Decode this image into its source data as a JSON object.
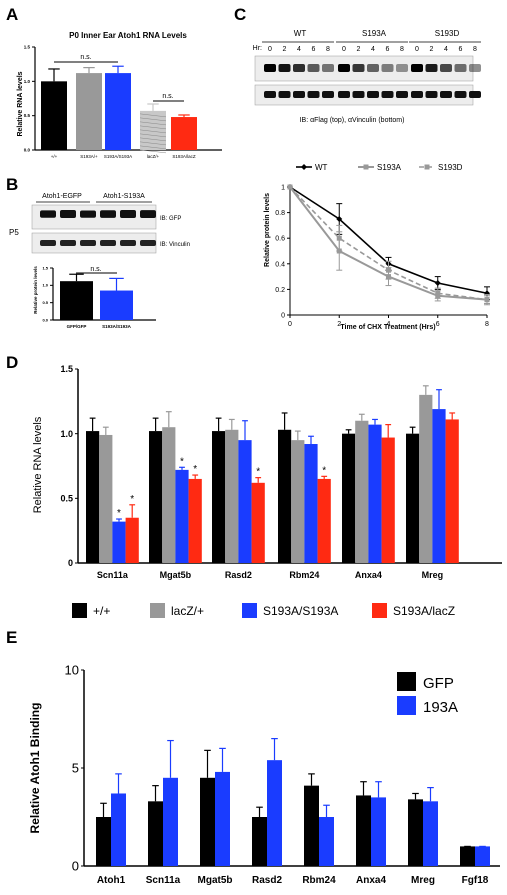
{
  "panels": {
    "A": "A",
    "B": "B",
    "C": "C",
    "D": "D",
    "E": "E"
  },
  "colors": {
    "black": "#000000",
    "gray": "#999999",
    "blue": "#1a3cff",
    "red": "#ff2a12",
    "light": "#c8c8c8",
    "salmon": "#ff6655"
  },
  "chart_data": [
    {
      "id": "A",
      "type": "bar",
      "title": "P0 Inner Ear Atoh1 RNA Levels",
      "ylabel": "Relative RNA levels",
      "xlabel": "",
      "ylim": [
        0,
        1.5
      ],
      "yticks": [
        "0.0",
        "0.5",
        "1.0",
        "1.5"
      ],
      "categories": [
        "+/+",
        "S193A/+",
        "S193A/S193A",
        "lacZ/+",
        "S193A/lacZ"
      ],
      "values": [
        1.0,
        1.12,
        1.12,
        0.57,
        0.48
      ],
      "errors": [
        0.18,
        0.08,
        0.1,
        0.1,
        0.03
      ],
      "annotations": [
        "n.s.",
        "n.s."
      ]
    },
    {
      "id": "B",
      "type": "bar",
      "ylabel": "Relative protein levels",
      "ylim": [
        0,
        1.5
      ],
      "categories": [
        "GFP/GFP",
        "S193A/S193A"
      ],
      "values": [
        1.12,
        0.85
      ],
      "errors": [
        0.2,
        0.35
      ],
      "annotations": [
        "n.s."
      ],
      "blot": {
        "groups": [
          "Atoh1-EGFP",
          "Atoh1-S193A"
        ],
        "row_label": "P5",
        "rows": [
          "IB: GFP",
          "IB: Vinculin"
        ]
      }
    },
    {
      "id": "C",
      "type": "line",
      "xlabel": "Time of CHX Treatment (Hrs)",
      "ylabel": "Relative protein levels",
      "xlim": [
        0,
        8
      ],
      "ylim": [
        0,
        1.0
      ],
      "xticks": [
        "0",
        "2",
        "4",
        "6",
        "8"
      ],
      "yticks": [
        "0",
        "0.2",
        "0.4",
        "0.6",
        "0.8",
        "1"
      ],
      "x": [
        0,
        2,
        4,
        6,
        8
      ],
      "series": [
        {
          "name": "WT",
          "values": [
            1.0,
            0.75,
            0.4,
            0.25,
            0.17
          ],
          "errors": [
            0,
            0.12,
            0.05,
            0.05,
            0.05
          ]
        },
        {
          "name": "S193A",
          "values": [
            1.0,
            0.5,
            0.3,
            0.15,
            0.12
          ],
          "errors": [
            0,
            0.15,
            0.07,
            0.04,
            0.03
          ]
        },
        {
          "name": "S193D",
          "values": [
            1.0,
            0.6,
            0.35,
            0.17,
            0.12
          ],
          "errors": [
            0,
            0.1,
            0.07,
            0.04,
            0.04
          ]
        }
      ],
      "blot": {
        "hr_label": "Hr:",
        "groups": [
          "WT",
          "S193A",
          "S193D"
        ],
        "timepoints": [
          "0",
          "2",
          "4",
          "6",
          "8"
        ],
        "caption": "IB: αFlag (top), αVinculin (bottom)"
      }
    },
    {
      "id": "D",
      "type": "bar",
      "ylabel": "Relative RNA levels",
      "ylim": [
        0,
        1.5
      ],
      "yticks": [
        "0",
        "0.5",
        "1.0",
        "1.5"
      ],
      "categories": [
        "Scn11a",
        "Mgat5b",
        "Rasd2",
        "Rbm24",
        "Anxa4",
        "Mreg"
      ],
      "series": [
        {
          "name": "+/+",
          "values": [
            1.02,
            1.02,
            1.02,
            1.03,
            1.0,
            1.0
          ],
          "errors": [
            0.1,
            0.1,
            0.1,
            0.13,
            0.03,
            0.05
          ]
        },
        {
          "name": "lacZ/+",
          "values": [
            0.99,
            1.05,
            1.03,
            0.95,
            1.1,
            1.3
          ],
          "errors": [
            0.06,
            0.12,
            0.08,
            0.07,
            0.05,
            0.07
          ]
        },
        {
          "name": "S193A/S193A",
          "values": [
            0.32,
            0.72,
            0.95,
            0.92,
            1.07,
            1.19
          ],
          "errors": [
            0.02,
            0.02,
            0.15,
            0.06,
            0.04,
            0.15
          ]
        },
        {
          "name": "S193A/lacZ",
          "values": [
            0.35,
            0.65,
            0.62,
            0.65,
            0.97,
            1.11
          ],
          "errors": [
            0.1,
            0.03,
            0.04,
            0.02,
            0.1,
            0.05
          ]
        }
      ],
      "stars": [
        [
          0,
          2
        ],
        [
          0,
          3
        ],
        [
          1,
          2
        ],
        [
          1,
          3
        ],
        [
          2,
          3
        ],
        [
          3,
          3
        ]
      ],
      "star_label": "*"
    },
    {
      "id": "E",
      "type": "bar",
      "ylabel": "Relative Atoh1 Binding",
      "ylim": [
        0,
        10
      ],
      "yticks": [
        "0",
        "5",
        "10"
      ],
      "categories": [
        "Atoh1",
        "Scn11a",
        "Mgat5b",
        "Rasd2",
        "Rbm24",
        "Anxa4",
        "Mreg",
        "Fgf18"
      ],
      "series": [
        {
          "name": "GFP",
          "values": [
            2.5,
            3.3,
            4.5,
            2.5,
            4.1,
            3.6,
            3.4,
            1.0
          ],
          "errors": [
            0.7,
            0.8,
            1.4,
            0.5,
            0.6,
            0.7,
            0.3,
            0.0
          ]
        },
        {
          "name": "193A",
          "values": [
            3.7,
            4.5,
            4.8,
            5.4,
            2.5,
            3.5,
            3.3,
            1.0
          ],
          "errors": [
            1.0,
            1.9,
            1.2,
            1.1,
            0.6,
            0.8,
            0.7,
            0.0
          ]
        }
      ]
    }
  ]
}
